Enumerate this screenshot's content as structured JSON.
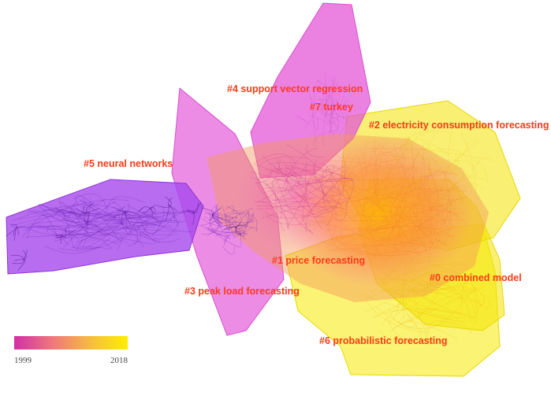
{
  "clusters": [
    {
      "id": "c0",
      "label": "#0 combined model",
      "color": "#f4e400"
    },
    {
      "id": "c1",
      "label": "#1 price forecasting",
      "color": "#f5a340"
    },
    {
      "id": "c2",
      "label": "#2 electricity consumption forecasting",
      "color": "#f2e200"
    },
    {
      "id": "c3",
      "label": "#3 peak load forecasting",
      "color": "#e058d4"
    },
    {
      "id": "c4",
      "label": "#4 support vector regression",
      "color": "#e04ccd"
    },
    {
      "id": "c5",
      "label": "#5 neural networks",
      "color": "#9b3ce6"
    },
    {
      "id": "c6",
      "label": "#6 probabilistic forecasting",
      "color": "#f6ea00"
    },
    {
      "id": "c7",
      "label": "#7 turkey",
      "color": "#e04ccd"
    }
  ],
  "legend": {
    "start_year": "1999",
    "end_year": "2018",
    "gradient": [
      "#d42fa6",
      "#f07a7a",
      "#f6c23a",
      "#ffee00"
    ]
  }
}
